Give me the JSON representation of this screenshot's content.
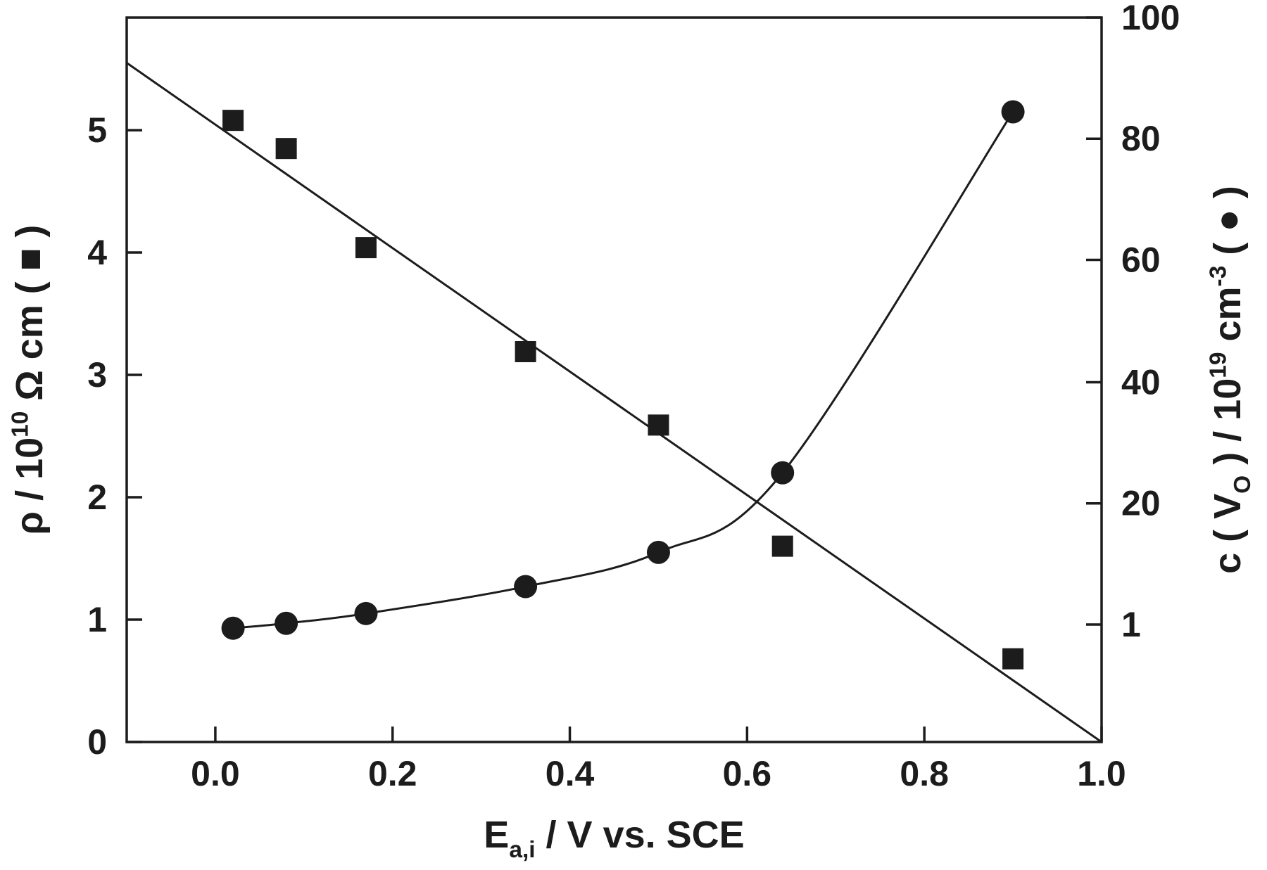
{
  "figure": {
    "background": "#ffffff",
    "ink_color": "#1c1c1c"
  },
  "chart_data": {
    "type": "scatter",
    "title": "",
    "description": "Dual-axis scatter plot: resistivity (squares, left axis, linear fit line decreasing) and oxygen vacancy concentration (circles, right axis, increasing smooth curve) versus anodization potential",
    "x_axis": {
      "label_parts": [
        [
          "n",
          "E"
        ],
        [
          "sub",
          "a,i"
        ],
        [
          "n",
          " / V vs. SCE"
        ]
      ],
      "tick_labels": [
        "0.0",
        "0.2",
        "0.4",
        "0.6",
        "0.8",
        "1.0"
      ],
      "tick_values": [
        0,
        0.2,
        0.4,
        0.6,
        0.8,
        1.0
      ],
      "range": [
        -0.1,
        1.0
      ]
    },
    "y_left_axis": {
      "label_parts": [
        [
          "n",
          "ρ / 10"
        ],
        [
          "sup",
          "10"
        ],
        [
          "n",
          " Ω cm ( ■ )"
        ]
      ],
      "tick_labels": [
        "0",
        "1",
        "2",
        "3",
        "4",
        "5"
      ],
      "tick_values": [
        0,
        1,
        2,
        3,
        4,
        5
      ],
      "range": [
        0,
        5.92
      ]
    },
    "y_right_axis": {
      "label_parts": [
        [
          "n",
          "c ( V"
        ],
        [
          "sub",
          "O"
        ],
        [
          "n",
          " ) / 10"
        ],
        [
          "sup",
          "19"
        ],
        [
          "n",
          " cm"
        ],
        [
          "sup",
          "-3"
        ],
        [
          "n",
          " ( ● )"
        ]
      ],
      "tick_labels": [
        "1",
        "20",
        "40",
        "60",
        "80",
        "100"
      ],
      "tick_positions_in_left_units": [
        0.96,
        1.95,
        2.94,
        3.94,
        4.93,
        5.92
      ]
    },
    "series": [
      {
        "name": "resistivity-squares",
        "marker": "square",
        "axis": "left",
        "points_x": [
          0.02,
          0.08,
          0.17,
          0.35,
          0.5,
          0.64,
          0.9
        ],
        "points_y_left_units": [
          5.08,
          4.85,
          4.04,
          3.19,
          2.59,
          1.6,
          0.68
        ],
        "fit_line": {
          "x": [
            -0.1,
            1.0
          ],
          "y": [
            5.55,
            0.0
          ]
        }
      },
      {
        "name": "oxygen-vacancy-circles",
        "marker": "circle",
        "axis": "right",
        "points_x": [
          0.02,
          0.08,
          0.17,
          0.35,
          0.5,
          0.64,
          0.9
        ],
        "points_y_left_units": [
          0.93,
          0.97,
          1.05,
          1.27,
          1.55,
          2.2,
          5.15
        ],
        "approx_values_right_axis": [
          1,
          1.5,
          3,
          7,
          13,
          26,
          84
        ],
        "smooth_curve": true
      }
    ]
  }
}
